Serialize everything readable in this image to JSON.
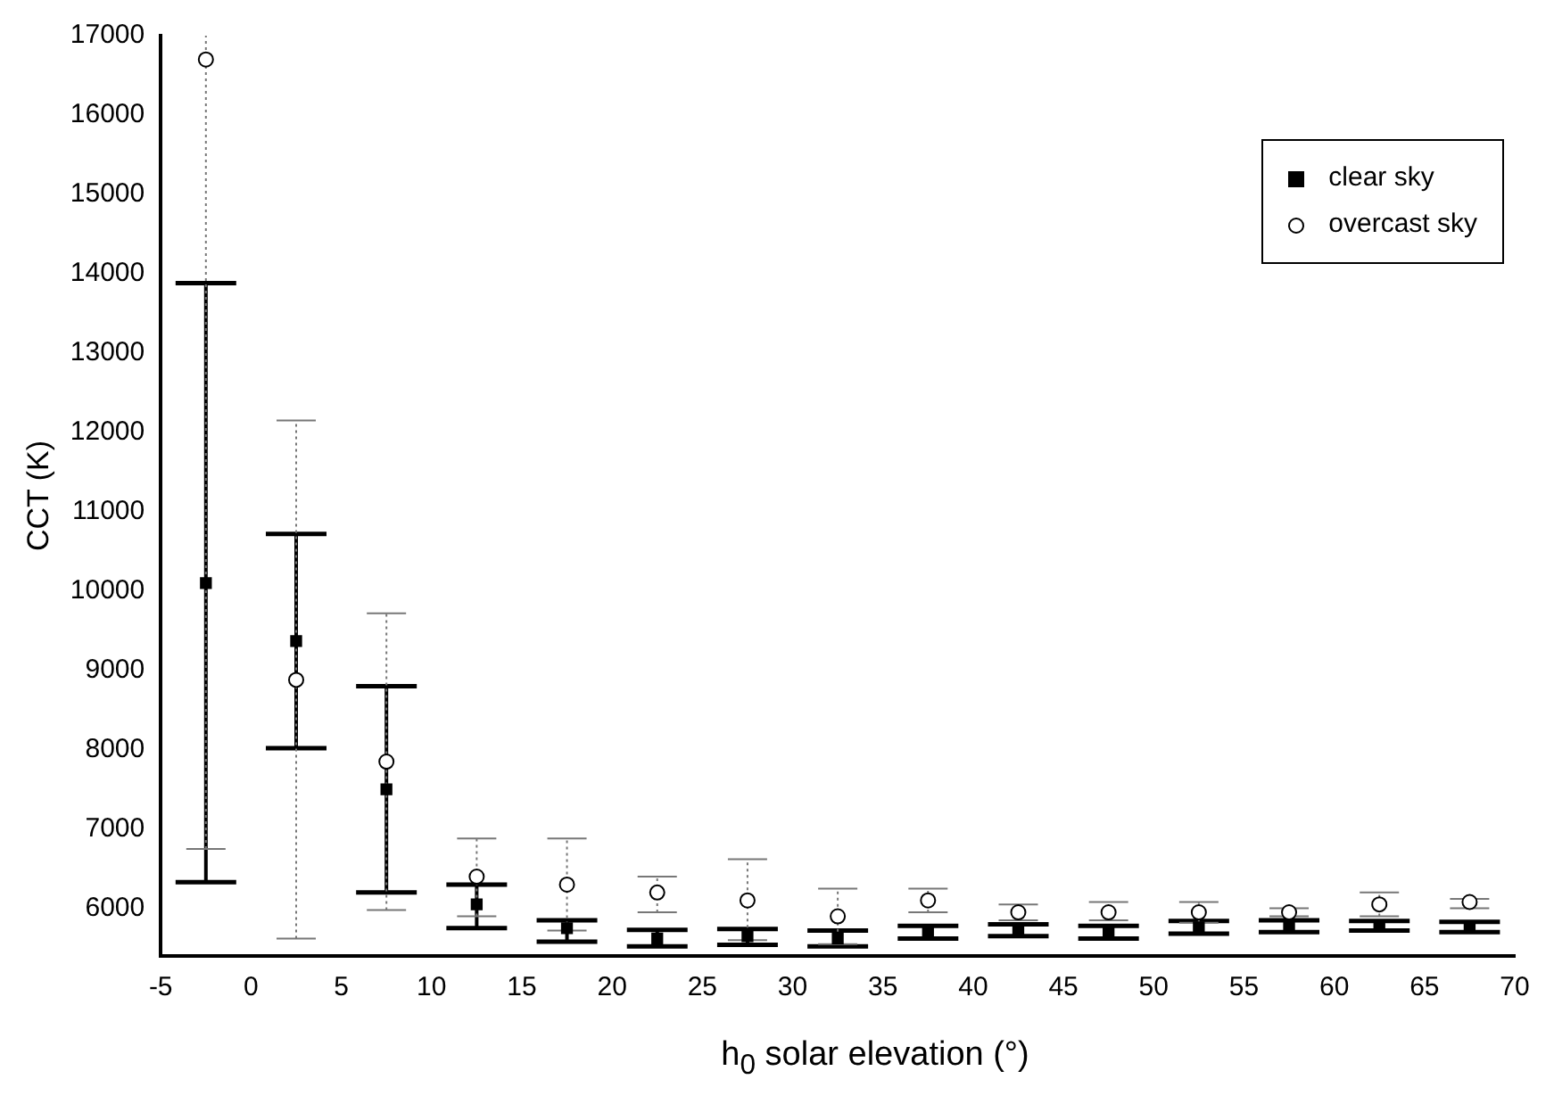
{
  "chart_data": {
    "type": "scatter",
    "xlabel": "h$_{0}$ solar elevation (°)",
    "ylabel": "CCT (K)",
    "xlim": [
      -5,
      70
    ],
    "xticks": [
      -5,
      0,
      5,
      10,
      15,
      20,
      25,
      30,
      35,
      40,
      45,
      50,
      55,
      60,
      65,
      70
    ],
    "ylim": [
      5400,
      17000
    ],
    "yticks": [
      6000,
      7000,
      8000,
      9000,
      10000,
      11000,
      12000,
      13000,
      14000,
      15000,
      16000,
      17000
    ],
    "grid": false,
    "legend": "top right",
    "x": [
      -2.5,
      2.5,
      7.5,
      12.5,
      17.5,
      22.5,
      27.5,
      32.5,
      37.5,
      42.5,
      47.5,
      52.5,
      57.5,
      62.5,
      67.5
    ],
    "series": [
      {
        "name": "clear sky",
        "color": "#000000",
        "marker": "square",
        "line_style": "solid",
        "values": [
          10100,
          9370,
          7500,
          6050,
          5750,
          5620,
          5650,
          5620,
          5700,
          5720,
          5700,
          5760,
          5780,
          5780,
          5760
        ],
        "errors": [
          [
            6330,
            13880
          ],
          [
            8020,
            10720
          ],
          [
            6200,
            8800
          ],
          [
            5750,
            6300
          ],
          [
            5580,
            5850
          ],
          [
            5520,
            5730
          ],
          [
            5540,
            5740
          ],
          [
            5520,
            5720
          ],
          [
            5620,
            5780
          ],
          [
            5650,
            5800
          ],
          [
            5620,
            5780
          ],
          [
            5680,
            5840
          ],
          [
            5700,
            5850
          ],
          [
            5720,
            5840
          ],
          [
            5700,
            5830
          ]
        ]
      },
      {
        "name": "overcast sky",
        "color": "#000000",
        "marker": "circle",
        "line_style": "dotted",
        "values": [
          16700,
          8880,
          7850,
          6400,
          6300,
          6200,
          6100,
          5900,
          6100,
          5950,
          5950,
          5950,
          5950,
          6050,
          6080
        ],
        "errors": [
          [
            6750,
            17000
          ],
          [
            5620,
            12150
          ],
          [
            5980,
            9720
          ],
          [
            5900,
            6880
          ],
          [
            5720,
            6880
          ],
          [
            5950,
            6400
          ],
          [
            5600,
            6620
          ],
          [
            5550,
            6250
          ],
          [
            5950,
            6250
          ],
          [
            5850,
            6050
          ],
          [
            5850,
            6080
          ],
          [
            5820,
            6080
          ],
          [
            5900,
            6000
          ],
          [
            5900,
            6200
          ],
          [
            6000,
            6120
          ]
        ]
      }
    ]
  }
}
